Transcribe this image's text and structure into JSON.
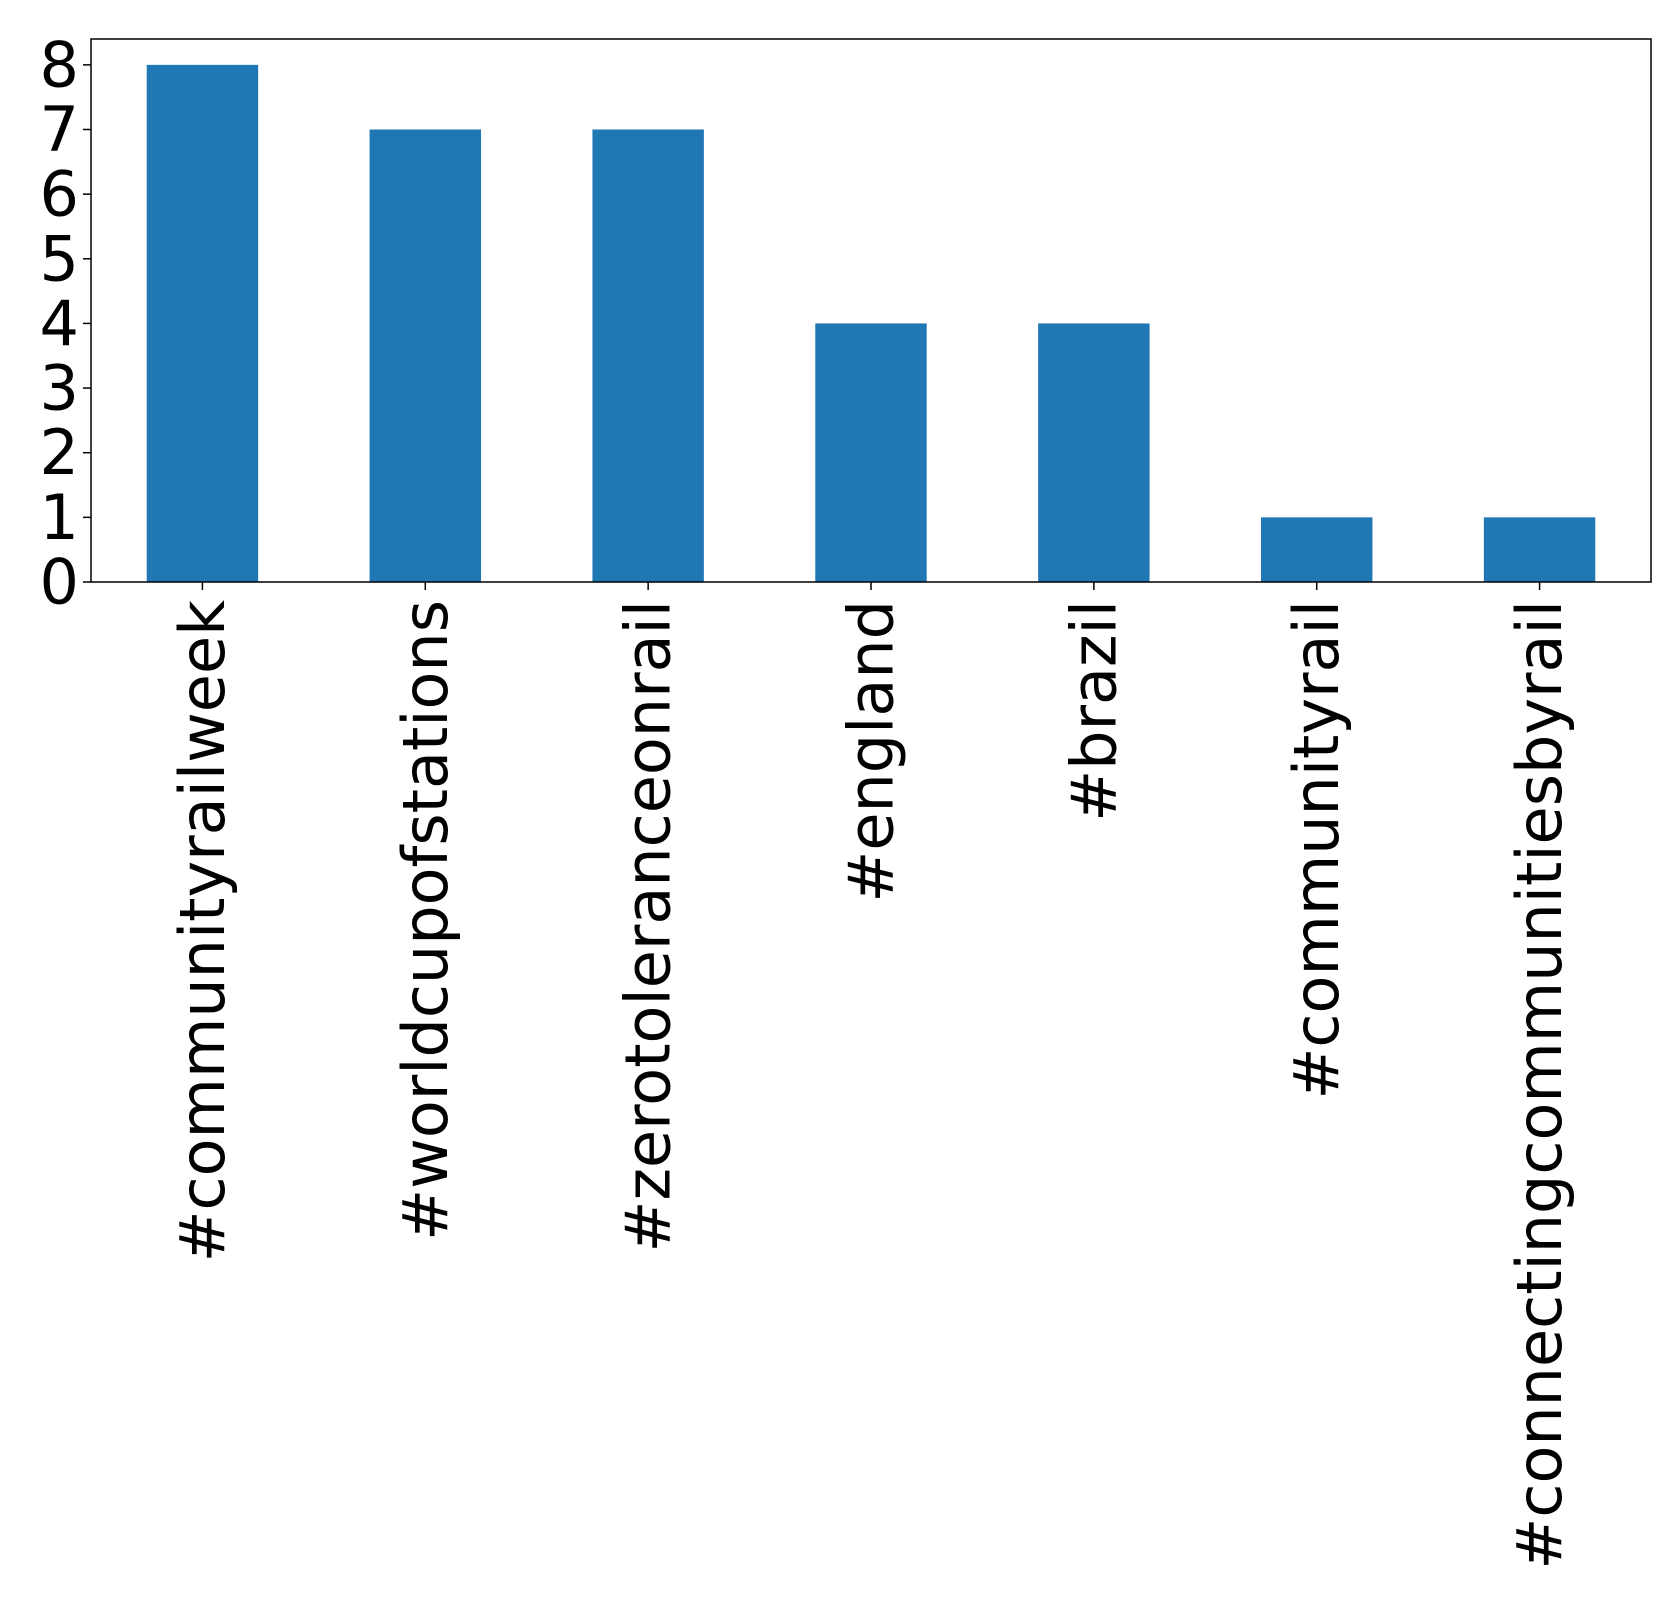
{
  "chart_data": {
    "type": "bar",
    "categories": [
      "#communityrailweek",
      "#worldcupofstations",
      "#zerotoleranceonrail",
      "#england",
      "#brazil",
      "#communityrail",
      "#connectingcommunitiesbyrail"
    ],
    "values": [
      8,
      7,
      7,
      4,
      4,
      1,
      1
    ],
    "title": "",
    "xlabel": "",
    "ylabel": "",
    "ylim": [
      0,
      8.4
    ],
    "yticks": [
      "0",
      "1",
      "2",
      "3",
      "4",
      "5",
      "6",
      "7",
      "8"
    ],
    "grid": false,
    "legend": "none",
    "bar_color": "#1f77b4"
  }
}
